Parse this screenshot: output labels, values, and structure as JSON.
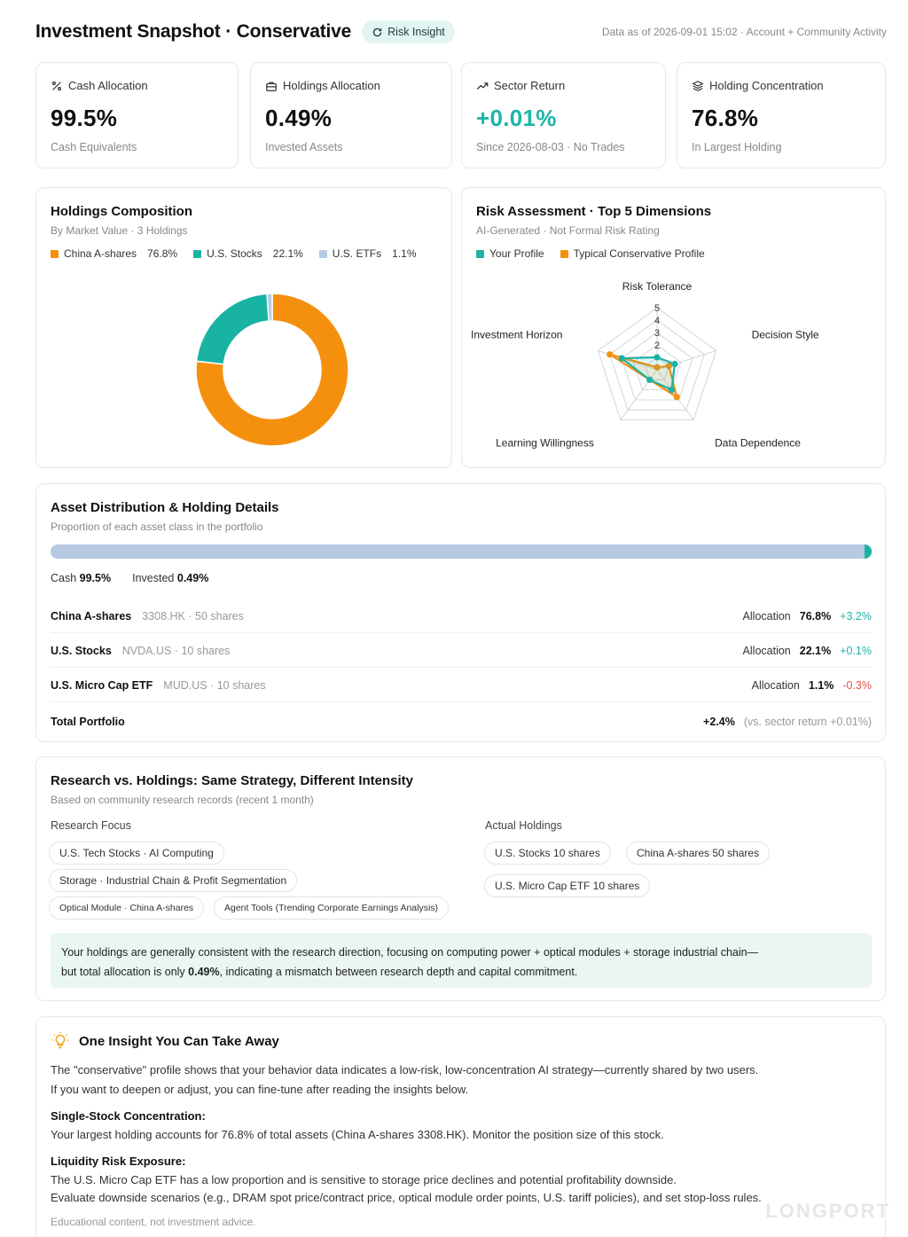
{
  "header": {
    "title": "Investment Snapshot · Conservative",
    "badge": "Risk Insight",
    "as_of": "Data as of 2026-09-01 15:02 · Account + Community Activity"
  },
  "kpis": [
    {
      "label": "Cash Allocation",
      "value": "99.5%",
      "sub": "Cash Equivalents",
      "icon": "percent-icon"
    },
    {
      "label": "Holdings Allocation",
      "value": "0.49%",
      "sub": "Invested Assets",
      "icon": "briefcase-icon"
    },
    {
      "label": "Sector Return",
      "value": "+0.01%",
      "sub": "Since 2026-08-03 · No Trades",
      "icon": "trend-up-icon"
    },
    {
      "label": "Holding Concentration",
      "value": "76.8%",
      "sub": "In Largest Holding",
      "icon": "layers-icon"
    }
  ],
  "composition": {
    "title": "Holdings Composition",
    "subtitle": "By Market Value · 3 Holdings",
    "legend": [
      {
        "label": "China A-shares",
        "value": "76.8%",
        "color": "#f5900f"
      },
      {
        "label": "U.S. Stocks",
        "value": "22.1%",
        "color": "#19b3a3"
      },
      {
        "label": "U.S. ETFs",
        "value": "1.1%",
        "color": "#b7c9e2"
      }
    ]
  },
  "risk": {
    "title": "Risk Assessment · Top 5 Dimensions",
    "subtitle": "AI-Generated · Not Formal Risk Rating",
    "legend": [
      {
        "label": "Your Profile",
        "color": "#19b3a3"
      },
      {
        "label": "Typical Conservative Profile",
        "color": "#f5900f"
      }
    ]
  },
  "chart_data": [
    {
      "type": "pie",
      "categories": [
        "China A-shares",
        "U.S. Stocks",
        "U.S. ETFs"
      ],
      "values": [
        76.8,
        22.1,
        1.1
      ],
      "colors": [
        "#f5900f",
        "#19b3a3",
        "#b7c9e2"
      ]
    },
    {
      "type": "radar",
      "axes": [
        "Risk Tolerance",
        "Decision Style",
        "Data Dependence",
        "Learning Willingness",
        "Investment Horizon"
      ],
      "ticks": [
        "2",
        "3",
        "4",
        "5"
      ],
      "range": [
        0,
        5
      ],
      "series": [
        {
          "name": "Your Profile",
          "values": [
            1.0,
            1.5,
            2.0,
            1.0,
            3.0
          ],
          "color": "#19b3a3"
        },
        {
          "name": "Typical Conservative Profile",
          "values": [
            0.2,
            1.0,
            2.7,
            1.0,
            4.0
          ],
          "color": "#f5900f"
        }
      ]
    }
  ],
  "distribution": {
    "title": "Asset Distribution & Holding Details",
    "subtitle": "Proportion of each asset class in the portfolio",
    "cash_label": "Cash",
    "cash_value": "99.5%",
    "invested_label": "Invested",
    "invested_value": "0.49%",
    "invested_fraction": 0.0049,
    "rows": [
      {
        "name": "China A-shares",
        "ticker": "3308.HK · 50 shares",
        "alloc_label": "Allocation",
        "alloc": "76.8%",
        "change": "+3.2%",
        "dir": "pos"
      },
      {
        "name": "U.S. Stocks",
        "ticker": "NVDA.US · 10 shares",
        "alloc_label": "Allocation",
        "alloc": "22.1%",
        "change": "+0.1%",
        "dir": "pos"
      },
      {
        "name": "U.S. Micro Cap ETF",
        "ticker": "MUD.US · 10 shares",
        "alloc_label": "Allocation",
        "alloc": "1.1%",
        "change": "-0.3%",
        "dir": "neg"
      }
    ],
    "total_label": "Total Portfolio",
    "total_value": "+2.4%",
    "total_note": "(vs. sector return +0.01%)"
  },
  "research": {
    "title": "Research vs. Holdings: Same Strategy, Different Intensity",
    "subtitle": "Based on community research records (recent 1 month)",
    "focus_label": "Research Focus",
    "focus_chips": [
      "U.S. Tech Stocks · AI Computing",
      "Storage · Industrial Chain & Profit Segmentation",
      "Optical Module · China A-shares",
      "Agent Tools (Trending Corporate Earnings Analysis)"
    ],
    "holdings_label": "Actual Holdings",
    "holding_chips": [
      "U.S. Stocks 10 shares",
      "China A-shares 50 shares",
      "U.S. Micro Cap ETF 10 shares"
    ],
    "callout_a": "Your holdings are generally consistent with the research direction, focusing on computing power + optical modules + storage industrial chain—",
    "callout_b": "but total allocation is only ",
    "callout_bold": "0.49%",
    "callout_c": ", indicating a mismatch between research depth and capital commitment."
  },
  "insight": {
    "title": "One Insight You Can Take Away",
    "intro_1": "The \"conservative\" profile shows that your behavior data indicates a low-risk, low-concentration AI strategy—currently shared by two users.",
    "intro_2": "If you want to deepen or adjust, you can fine-tune after reading the insights below.",
    "h1": "Single-Stock Concentration:",
    "p1": "Your largest holding accounts for 76.8% of total assets (China A-shares 3308.HK). Monitor the position size of this stock.",
    "h2": "Liquidity Risk Exposure:",
    "p2a": "The U.S. Micro Cap ETF has a low proportion and is sensitive to storage price declines and potential profitability downside.",
    "p2b": "Evaluate downside scenarios (e.g., DRAM spot price/contract price, optical module order points, U.S. tariff policies), and set stop-loss rules.",
    "disclaimer": "Educational content, not investment advice.",
    "watermark": "LONGPORT"
  }
}
